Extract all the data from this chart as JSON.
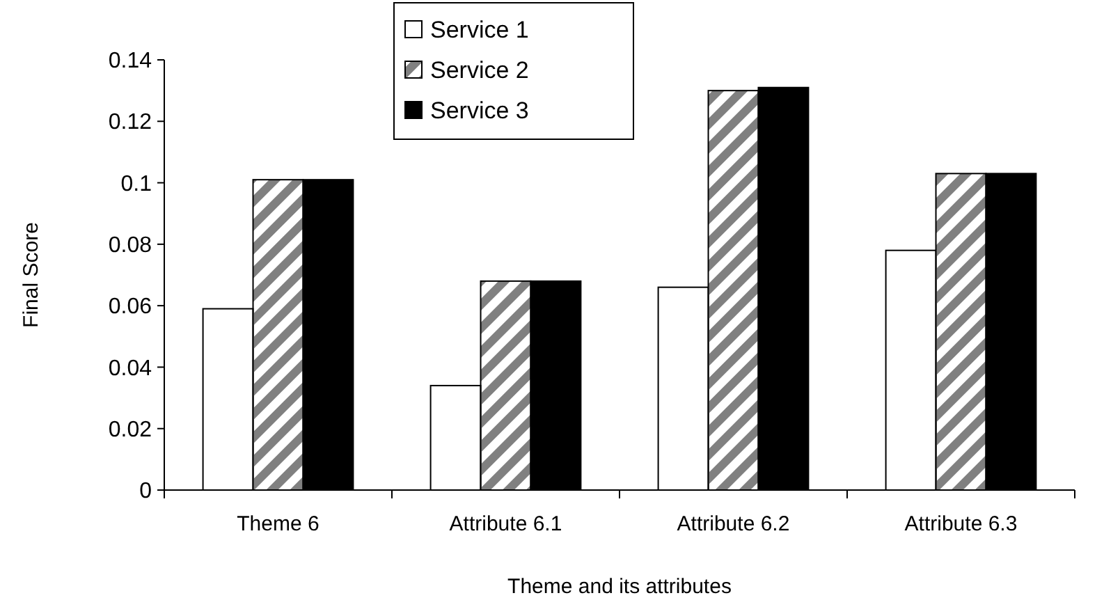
{
  "chart_data": {
    "type": "bar",
    "xlabel": "Theme and its attributes",
    "ylabel": "Final Score",
    "categories": [
      "Theme 6",
      "Attribute 6.1",
      "Attribute 6.2",
      "Attribute 6.3"
    ],
    "series": [
      {
        "name": "Service 1",
        "color": "#ffffff",
        "values": [
          0.059,
          0.034,
          0.066,
          0.078
        ]
      },
      {
        "name": "Service 2",
        "color": "#808080",
        "values": [
          0.101,
          0.068,
          0.13,
          0.103
        ]
      },
      {
        "name": "Service 3",
        "color": "#000000",
        "values": [
          0.101,
          0.068,
          0.131,
          0.103
        ]
      }
    ],
    "ylim": [
      0,
      0.14
    ],
    "yticks": [
      0,
      0.02,
      0.04,
      0.06,
      0.08,
      0.1,
      0.12,
      0.14
    ],
    "grid": false,
    "legend": "top"
  }
}
